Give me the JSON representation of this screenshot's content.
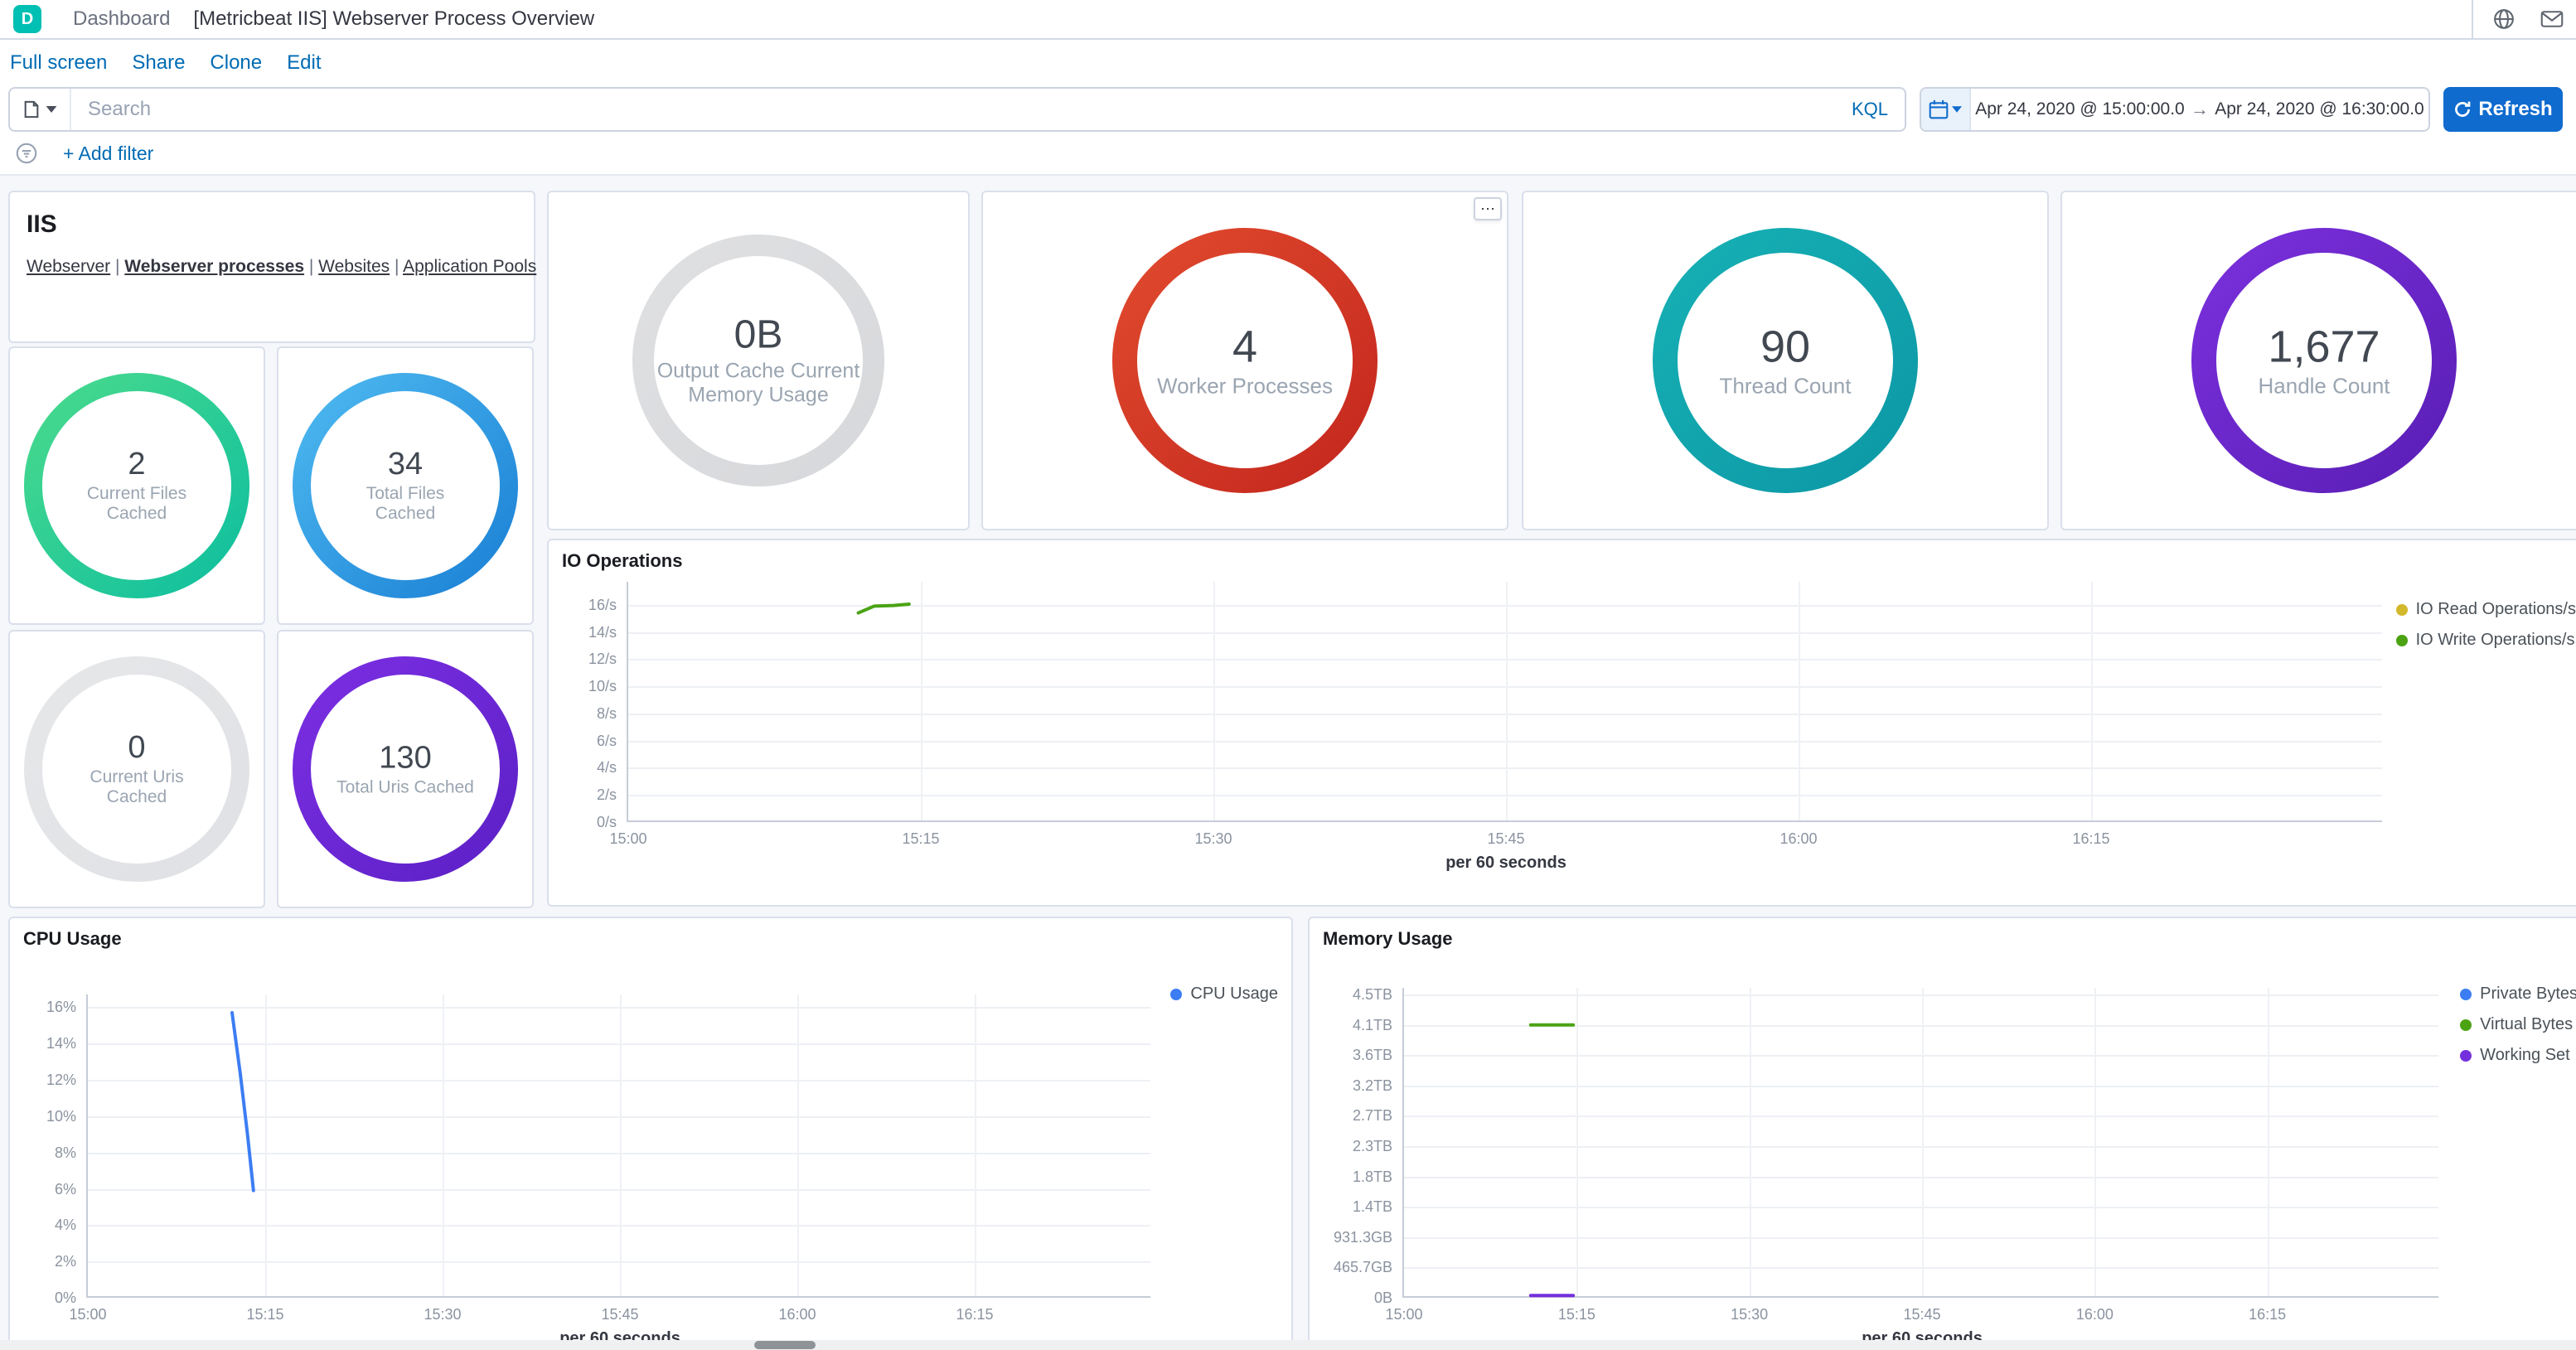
{
  "header": {
    "space_initial": "D",
    "breadcrumb": "Dashboard",
    "title": "[Metricbeat IIS] Webserver Process Overview"
  },
  "toolbar": {
    "menu_items": [
      "Full screen",
      "Share",
      "Clone",
      "Edit"
    ]
  },
  "search_bar": {
    "placeholder": "Search",
    "kql_label": "KQL",
    "date_start": "Apr 24, 2020 @ 15:00:00.0",
    "range_arrow": "→",
    "date_end": "Apr 24, 2020 @ 16:30:00.0",
    "refresh_label": "Refresh",
    "add_filter_label": "+ Add filter"
  },
  "colors": {
    "primary_fill": "#0f6bce",
    "link_blue": "#006bb4",
    "space_avatar": "#00bfb3",
    "dashboard_bg": "#f5f7fa"
  },
  "icons": {
    "panel_options": "⋯"
  },
  "iis_panel": {
    "title": "IIS",
    "separator": "|",
    "links": [
      {
        "label": "Webserver",
        "current": false
      },
      {
        "label": "Webserver processes",
        "current": true
      },
      {
        "label": "Websites",
        "current": false
      },
      {
        "label": "Application Pools",
        "current": false
      }
    ]
  },
  "gauges": [
    {
      "value": "2",
      "label": "Current Files Cached",
      "variant": "small",
      "color1": "#49da8c",
      "color2": "#0fbf9f"
    },
    {
      "value": "34",
      "label": "Total Files Cached",
      "variant": "small",
      "color1": "#4db9f0",
      "color2": "#1b80d5"
    },
    {
      "value": "0",
      "label": "Current Uris Cached",
      "variant": "small",
      "color1": "#e6e7e9",
      "color2": "#dfe1e4"
    },
    {
      "value": "130",
      "label": "Total Uris Cached",
      "variant": "small",
      "color1": "#7b2fe2",
      "color2": "#5c20c6"
    },
    {
      "value": "0B",
      "label": "Output Cache Current Memory Usage",
      "variant": "medium",
      "color1": "#dfe0e2",
      "color2": "#d7d8db"
    },
    {
      "value": "4",
      "label": "Worker Processes",
      "variant": "large",
      "color1": "#e04a2e",
      "color2": "#c4271d",
      "has_menu": true
    },
    {
      "value": "90",
      "label": "Thread Count",
      "variant": "large",
      "color1": "#16b0b4",
      "color2": "#0d98a6"
    },
    {
      "value": "1,677",
      "label": "Handle Count",
      "variant": "large",
      "color1": "#7a30dc",
      "color2": "#5a1eb5"
    }
  ],
  "chart_data": [
    {
      "id": "io",
      "type": "line",
      "title": "IO Operations",
      "xlabel": "per 60 seconds",
      "x_domain_minutes": 90,
      "x_ticks": [
        {
          "label": "15:00",
          "minute": 0
        },
        {
          "label": "15:15",
          "minute": 15
        },
        {
          "label": "15:30",
          "minute": 30
        },
        {
          "label": "15:45",
          "minute": 45
        },
        {
          "label": "16:00",
          "minute": 60
        },
        {
          "label": "16:15",
          "minute": 75
        }
      ],
      "y_ticks": [
        {
          "label": "0/s",
          "value": 0
        },
        {
          "label": "2/s",
          "value": 2
        },
        {
          "label": "4/s",
          "value": 4
        },
        {
          "label": "6/s",
          "value": 6
        },
        {
          "label": "8/s",
          "value": 8
        },
        {
          "label": "10/s",
          "value": 10
        },
        {
          "label": "12/s",
          "value": 12
        },
        {
          "label": "14/s",
          "value": 14
        },
        {
          "label": "16/s",
          "value": 16
        }
      ],
      "y_plot_max": 17.7,
      "legend_position": "right",
      "grid": true,
      "series": [
        {
          "name": "IO Read Operations/s",
          "color": "#d2b82d",
          "points": []
        },
        {
          "name": "IO Write Operations/s",
          "color": "#4ba314",
          "points": [
            [
              11.8,
              15.4
            ],
            [
              12.6,
              15.9
            ],
            [
              13.6,
              15.95
            ],
            [
              14.4,
              16.05
            ]
          ]
        }
      ]
    },
    {
      "id": "cpu",
      "type": "line",
      "title": "CPU Usage",
      "xlabel": "per 60 seconds",
      "x_domain_minutes": 90,
      "x_ticks": [
        {
          "label": "15:00",
          "minute": 0
        },
        {
          "label": "15:15",
          "minute": 15
        },
        {
          "label": "15:30",
          "minute": 30
        },
        {
          "label": "15:45",
          "minute": 45
        },
        {
          "label": "16:00",
          "minute": 60
        },
        {
          "label": "16:15",
          "minute": 75
        }
      ],
      "y_ticks": [
        {
          "label": "0%",
          "value": 0
        },
        {
          "label": "2%",
          "value": 2
        },
        {
          "label": "4%",
          "value": 4
        },
        {
          "label": "6%",
          "value": 6
        },
        {
          "label": "8%",
          "value": 8
        },
        {
          "label": "10%",
          "value": 10
        },
        {
          "label": "12%",
          "value": 12
        },
        {
          "label": "14%",
          "value": 14
        },
        {
          "label": "16%",
          "value": 16
        }
      ],
      "y_plot_max": 16.7,
      "legend_position": "right",
      "grid": true,
      "series": [
        {
          "name": "CPU Usage",
          "color": "#3c7df3",
          "points": [
            [
              12.2,
              15.7
            ],
            [
              12.9,
              12.3
            ],
            [
              13.5,
              9.0
            ],
            [
              14.0,
              5.9
            ]
          ]
        }
      ]
    },
    {
      "id": "memory",
      "type": "line",
      "title": "Memory Usage",
      "xlabel": "per 60 seconds",
      "x_domain_minutes": 90,
      "x_ticks": [
        {
          "label": "15:00",
          "minute": 0
        },
        {
          "label": "15:15",
          "minute": 15
        },
        {
          "label": "15:30",
          "minute": 30
        },
        {
          "label": "15:45",
          "minute": 45
        },
        {
          "label": "16:00",
          "minute": 60
        },
        {
          "label": "16:15",
          "minute": 75
        }
      ],
      "y_ticks": [
        {
          "label": "0B",
          "value": 0
        },
        {
          "label": "465.7GB",
          "value": 465.7
        },
        {
          "label": "931.3GB",
          "value": 931.3
        },
        {
          "label": "1.4TB",
          "value": 1397
        },
        {
          "label": "1.8TB",
          "value": 1862.6
        },
        {
          "label": "2.3TB",
          "value": 2328.3
        },
        {
          "label": "2.7TB",
          "value": 2793.9
        },
        {
          "label": "3.2TB",
          "value": 3259.6
        },
        {
          "label": "3.6TB",
          "value": 3725.3
        },
        {
          "label": "4.1TB",
          "value": 4190.9
        },
        {
          "label": "4.5TB",
          "value": 4656.6
        }
      ],
      "y_plot_max": 4760,
      "legend_position": "right",
      "grid": true,
      "series": [
        {
          "name": "Private Bytes",
          "color": "#3c7df3",
          "points": []
        },
        {
          "name": "Virtual Bytes",
          "color": "#4ba314",
          "points": [
            [
              11.0,
              4191
            ],
            [
              14.7,
              4191
            ]
          ]
        },
        {
          "name": "Working Set",
          "color": "#7430dd",
          "points": [
            [
              11.0,
              35
            ],
            [
              14.7,
              35
            ]
          ]
        }
      ]
    }
  ]
}
